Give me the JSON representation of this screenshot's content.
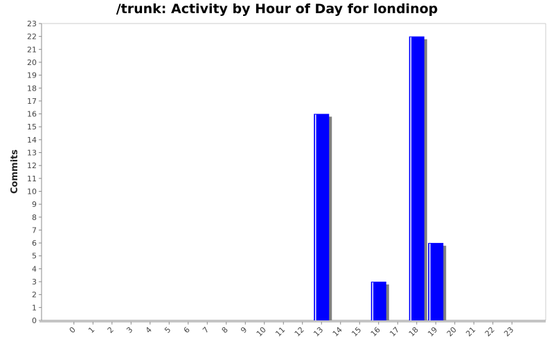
{
  "chart_data": {
    "type": "bar",
    "title": "/trunk: Activity by Hour of Day for londinop",
    "xlabel": "",
    "ylabel": "Commits",
    "categories": [
      "0",
      "1",
      "2",
      "3",
      "4",
      "5",
      "6",
      "7",
      "8",
      "9",
      "10",
      "11",
      "12",
      "13",
      "14",
      "15",
      "16",
      "17",
      "18",
      "19",
      "20",
      "21",
      "22",
      "23"
    ],
    "values": [
      0,
      0,
      0,
      0,
      0,
      0,
      0,
      0,
      0,
      0,
      0,
      0,
      0,
      16,
      0,
      0,
      3,
      0,
      22,
      6,
      0,
      0,
      0,
      0
    ],
    "ylim": [
      0,
      23
    ],
    "yticks": [
      0,
      1,
      2,
      3,
      4,
      5,
      6,
      7,
      8,
      9,
      10,
      11,
      12,
      13,
      14,
      15,
      16,
      17,
      18,
      19,
      20,
      21,
      22,
      23
    ],
    "grid": false,
    "colors": {
      "bar": "#0000ff",
      "bar_highlight": "#ffffff",
      "shadow": "#808080",
      "axis": "#888888"
    }
  }
}
